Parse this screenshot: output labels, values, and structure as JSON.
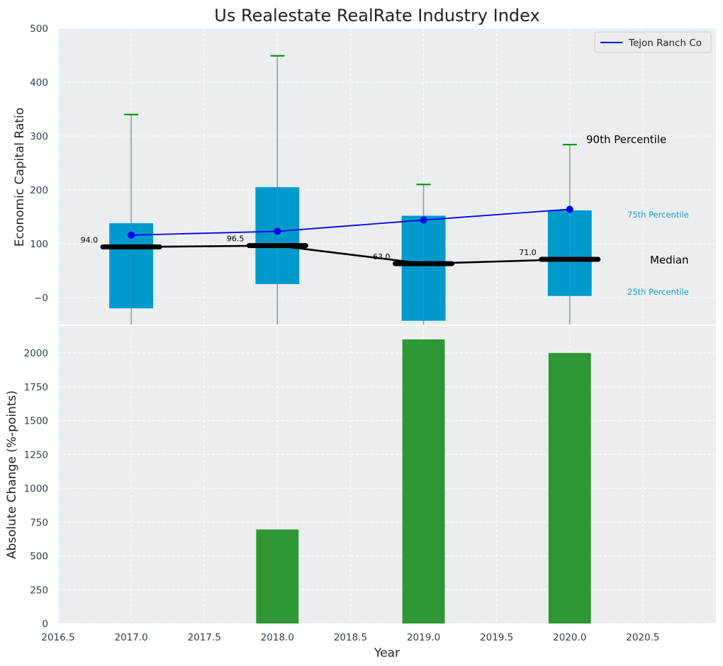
{
  "chart_data": [
    {
      "type": "box",
      "title": "Us Realestate RealRate Industry Index",
      "ylabel": "Economic Capital Ratio",
      "xlim": [
        2016.5,
        2021.0
      ],
      "ylim": [
        -50,
        500
      ],
      "yticks": [
        "−0",
        "100",
        "200",
        "300",
        "400",
        "500"
      ],
      "grid": true,
      "legend": {
        "placement": "top-right",
        "entries": [
          "Tejon Ranch Co"
        ]
      },
      "x": [
        2017.0,
        2018.0,
        2019.0,
        2020.0
      ],
      "percentile_25": [
        -20,
        25,
        -43,
        3
      ],
      "percentile_75": [
        138,
        205,
        152,
        162
      ],
      "percentile_90": [
        340,
        449,
        210,
        284
      ],
      "median": [
        94.0,
        96.5,
        63.0,
        71.0
      ],
      "median_labels": [
        "94.0",
        "96.5",
        "63.0",
        "71.0"
      ],
      "series": [
        {
          "name": "Tejon Ranch Co",
          "values": [
            116,
            123,
            144,
            164
          ],
          "color": "#0000ee"
        }
      ],
      "side_labels": {
        "p90": "90th Percentile",
        "p75": "75th Percentile",
        "median": "Median",
        "p25": "25th Percentile"
      },
      "colors": {
        "box": "#0099cc",
        "whisker_cap": "#008800",
        "median": "#000000"
      }
    },
    {
      "type": "bar",
      "xlabel": "Year",
      "ylabel": "Absolute Change (%-points)",
      "x": [
        2017.0,
        2018.0,
        2019.0,
        2020.0
      ],
      "values": [
        0,
        695,
        2100,
        2000
      ],
      "ylim": [
        0,
        2200
      ],
      "yticks": [
        "0",
        "250",
        "500",
        "750",
        "1000",
        "1250",
        "1500",
        "1750",
        "2000"
      ],
      "xticks": [
        "2016.5",
        "2017.0",
        "2017.5",
        "2018.0",
        "2018.5",
        "2019.0",
        "2019.5",
        "2020.0",
        "2020.5"
      ],
      "grid": true,
      "colors": {
        "bar": "#2e9632"
      }
    }
  ]
}
